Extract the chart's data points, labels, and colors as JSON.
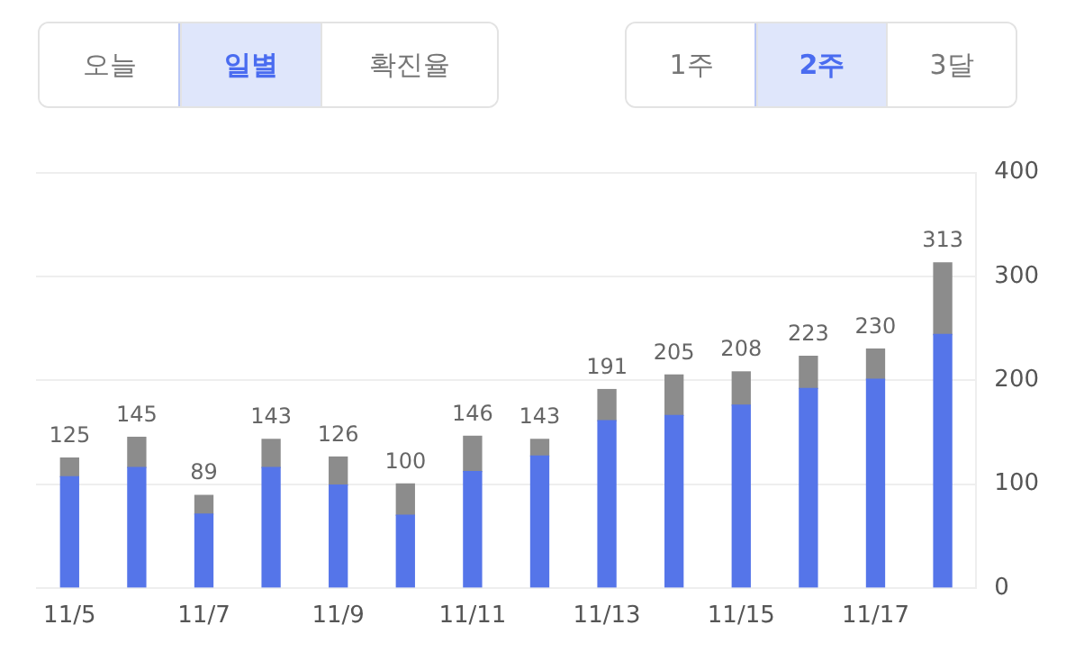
{
  "chart_data": {
    "type": "bar",
    "stacked": true,
    "categories": [
      "11/5",
      null,
      "11/7",
      null,
      "11/9",
      null,
      "11/11",
      null,
      "11/13",
      null,
      "11/15",
      null,
      "11/17",
      null
    ],
    "series": [
      {
        "color": "#5575e9",
        "values": [
          107,
          116,
          71,
          116,
          99,
          70,
          112,
          127,
          161,
          166,
          176,
          192,
          201,
          244
        ]
      },
      {
        "color": "#8c8c8c",
        "values": [
          18,
          29,
          18,
          27,
          27,
          30,
          34,
          16,
          30,
          39,
          32,
          31,
          29,
          69
        ]
      }
    ],
    "totals": [
      "125",
      "145",
      "89",
      "143",
      "126",
      "100",
      "146",
      "143",
      "191",
      "205",
      "208",
      "223",
      "230",
      "313"
    ],
    "ylim": [
      0,
      400
    ],
    "yticks": [
      0,
      100,
      200,
      300,
      400
    ],
    "grid": "y",
    "legend": false,
    "annotations": [
      "오늘",
      "일별",
      "확진율",
      "1주",
      "2주",
      "3달"
    ]
  }
}
